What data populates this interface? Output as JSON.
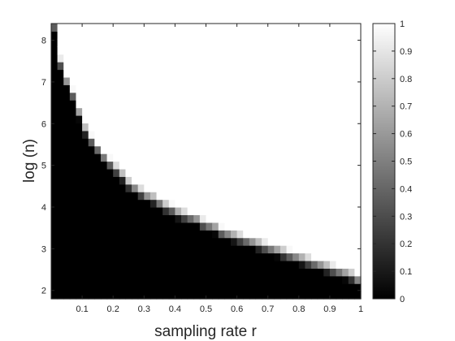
{
  "chart_data": {
    "type": "heatmap",
    "xlabel": "sampling rate r",
    "ylabel": "log (n)",
    "xlim": [
      0.0,
      1.0
    ],
    "ylim": [
      1.8,
      8.4
    ],
    "x_ticks": [
      "0.1",
      "0.2",
      "0.3",
      "0.4",
      "0.5",
      "0.6",
      "0.7",
      "0.8",
      "0.9",
      "1"
    ],
    "y_ticks": [
      "2",
      "3",
      "4",
      "5",
      "6",
      "7",
      "8"
    ],
    "colorbar": {
      "range": [
        0,
        1
      ],
      "ticks": [
        "0",
        "0.1",
        "0.2",
        "0.3",
        "0.4",
        "0.5",
        "0.6",
        "0.7",
        "0.8",
        "0.9",
        "1"
      ],
      "colormap": "gray"
    },
    "columns_r": [
      0.01,
      0.03,
      0.05,
      0.07,
      0.09,
      0.11,
      0.13,
      0.15,
      0.17,
      0.19,
      0.21,
      0.23,
      0.25,
      0.27,
      0.29,
      0.31,
      0.33,
      0.35,
      0.37,
      0.39,
      0.41,
      0.43,
      0.45,
      0.47,
      0.49,
      0.51,
      0.53,
      0.55,
      0.57,
      0.59,
      0.61,
      0.63,
      0.65,
      0.67,
      0.69,
      0.71,
      0.73,
      0.75,
      0.77,
      0.79,
      0.81,
      0.83,
      0.85,
      0.87,
      0.89,
      0.91,
      0.93,
      0.95,
      0.97,
      0.99
    ],
    "transition_log_n": [
      8.35,
      7.45,
      7.0,
      6.7,
      6.25,
      5.85,
      5.6,
      5.4,
      5.2,
      5.05,
      4.9,
      4.75,
      4.55,
      4.45,
      4.35,
      4.25,
      4.2,
      4.1,
      4.0,
      3.95,
      3.85,
      3.8,
      3.75,
      3.7,
      3.6,
      3.55,
      3.5,
      3.4,
      3.35,
      3.3,
      3.25,
      3.2,
      3.15,
      3.1,
      3.05,
      3.0,
      2.95,
      2.9,
      2.85,
      2.8,
      2.75,
      2.7,
      2.65,
      2.6,
      2.55,
      2.5,
      2.45,
      2.4,
      2.35,
      2.25
    ],
    "transition_width": 0.3
  }
}
